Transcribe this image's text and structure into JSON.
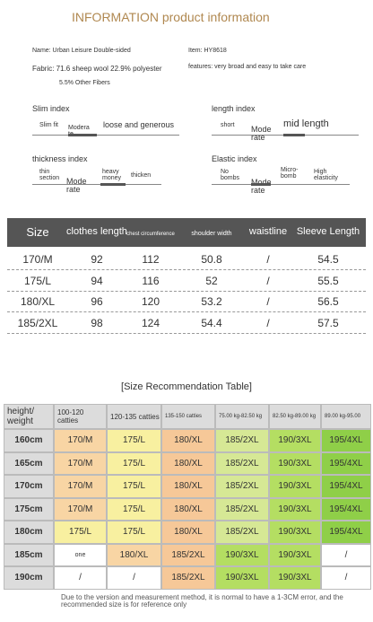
{
  "header": {
    "title_accent": "INFORMATION",
    "title": "product information"
  },
  "info": {
    "name": "Name: Urban Leisure Double-sided",
    "item": "Item: HY8618",
    "fabric": "Fabric: 71.6 sheep wool 22.9% polyester",
    "fabric_more": "5.5% Other Fibers",
    "features": "features: very broad and easy to take care"
  },
  "indexes": [
    {
      "title": "Slim index",
      "options": [
        "Slim fit",
        "Modera te",
        "loose and generous"
      ]
    },
    {
      "title": "length index",
      "options": [
        "short",
        "Mode rate",
        "mid length"
      ]
    },
    {
      "title": "thickness index",
      "options": [
        "thin section",
        "Mode rate",
        "heavy money",
        "thicken"
      ]
    },
    {
      "title": "Elastic index",
      "options": [
        "No bombs",
        "Mode rate",
        "Micro-bomb",
        "High elasticity"
      ]
    }
  ],
  "size_table": {
    "headers": [
      "Size",
      "clothes length",
      "chest circumference",
      "shoulder width",
      "waistline",
      "Sleeve Length"
    ],
    "rows": [
      [
        "170/M",
        "92",
        "112",
        "50.8",
        "/",
        "54.5"
      ],
      [
        "175/L",
        "94",
        "116",
        "52",
        "/",
        "55.5"
      ],
      [
        "180/XL",
        "96",
        "120",
        "53.2",
        "/",
        "56.5"
      ],
      [
        "185/2XL",
        "98",
        "124",
        "54.4",
        "/",
        "57.5"
      ]
    ]
  },
  "recommendation": {
    "title": "[Size Recommendation Table]",
    "headers": [
      "height/ weight",
      "100-120 catties",
      "120-135 catties",
      "135-150 catties",
      "75.00 kg-82.50 kg",
      "82.50 kg-89.00 kg",
      "89.00 kg-95.00"
    ],
    "rows": [
      [
        "160cm",
        "170/M",
        "175/L",
        "180/XL",
        "185/2XL",
        "190/3XL",
        "195/4XL"
      ],
      [
        "165cm",
        "170/M",
        "175/L",
        "180/XL",
        "185/2XL",
        "190/3XL",
        "195/4XL"
      ],
      [
        "170cm",
        "170/M",
        "175/L",
        "180/XL",
        "185/2XL",
        "190/3XL",
        "195/4XL"
      ],
      [
        "175cm",
        "170/M",
        "175/L",
        "180/XL",
        "185/2XL",
        "190/3XL",
        "195/4XL"
      ],
      [
        "180cm",
        "175/L",
        "175/L",
        "180/XL",
        "185/2XL",
        "190/3XL",
        "195/4XL"
      ],
      [
        "185cm",
        "one",
        "180/XL",
        "185/2XL",
        "190/3XL",
        "190/3XL",
        "/"
      ],
      [
        "190cm",
        "/",
        "/",
        "185/2XL",
        "190/3XL",
        "190/3XL",
        "/"
      ]
    ],
    "note": "Due to the version and measurement method, it is normal to have a 1-3CM error, and the recommended size is for reference only"
  }
}
